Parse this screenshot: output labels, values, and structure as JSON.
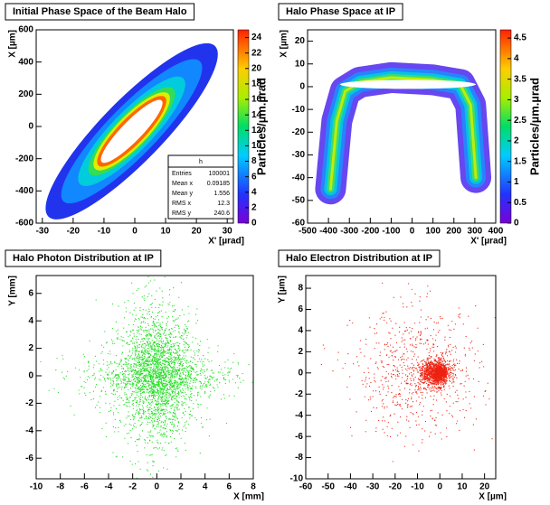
{
  "chart_data": [
    {
      "type": "heatmap",
      "title": "Initial Phase Space of the Beam Halo",
      "x_label": "X' [µrad]",
      "y_label": "X [µm]",
      "xlim": [
        -32,
        32
      ],
      "xticks": [
        -30,
        -20,
        -10,
        0,
        10,
        20,
        30
      ],
      "ylim": [
        -600,
        600
      ],
      "yticks": [
        -600,
        -400,
        -200,
        0,
        200,
        400,
        600
      ],
      "colorbar": {
        "label": "Particles/µm.µrad",
        "lim": [
          0,
          25
        ],
        "ticks": [
          0,
          2,
          4,
          6,
          8,
          10,
          12,
          14,
          16,
          18,
          20,
          22,
          24
        ]
      },
      "stats": {
        "title": "h",
        "rows": [
          {
            "label": "Entries",
            "value": 100001
          },
          {
            "label": "Mean x",
            "value": 0.09185
          },
          {
            "label": "Mean y",
            "value": 1.556
          },
          {
            "label": "RMS x",
            "value": 12.3
          },
          {
            "label": "RMS y",
            "value": 240.6
          }
        ]
      }
    },
    {
      "type": "heatmap",
      "title": "Halo Phase Space at IP",
      "x_label": "X' [µrad]",
      "y_label": "X [µm]",
      "xlim": [
        -500,
        400
      ],
      "xticks": [
        -500,
        -400,
        -300,
        -200,
        -100,
        0,
        100,
        200,
        300,
        400
      ],
      "ylim": [
        -60,
        25
      ],
      "yticks": [
        -60,
        -50,
        -40,
        -30,
        -20,
        -10,
        0,
        10,
        20
      ],
      "colorbar": {
        "label": "Particles/µm.µrad",
        "lim": [
          0,
          4.7
        ],
        "ticks": [
          0,
          0.5,
          1,
          1.5,
          2,
          2.5,
          3,
          3.5,
          4,
          4.5
        ]
      }
    },
    {
      "type": "scatter",
      "title": "Halo Photon Distribution at IP",
      "x_label": "X [mm]",
      "y_label": "Y [mm]",
      "color": "#22dd22",
      "xlim": [
        -10,
        8
      ],
      "xticks": [
        -10,
        -8,
        -6,
        -4,
        -2,
        0,
        2,
        4,
        6,
        8
      ],
      "ylim": [
        -7.5,
        7.3
      ],
      "yticks": [
        -6,
        -4,
        -2,
        0,
        2,
        4,
        6
      ]
    },
    {
      "type": "scatter",
      "title": "Halo Electron Distribution at IP",
      "x_label": "X [µm]",
      "y_label": "Y [µm]",
      "color": "#ee2211",
      "xlim": [
        -60,
        25
      ],
      "xticks": [
        -60,
        -50,
        -40,
        -30,
        -20,
        -10,
        0,
        10,
        20
      ],
      "ylim": [
        -10,
        9.2
      ],
      "yticks": [
        -10,
        -8,
        -6,
        -4,
        -2,
        0,
        2,
        4,
        6,
        8
      ]
    }
  ]
}
